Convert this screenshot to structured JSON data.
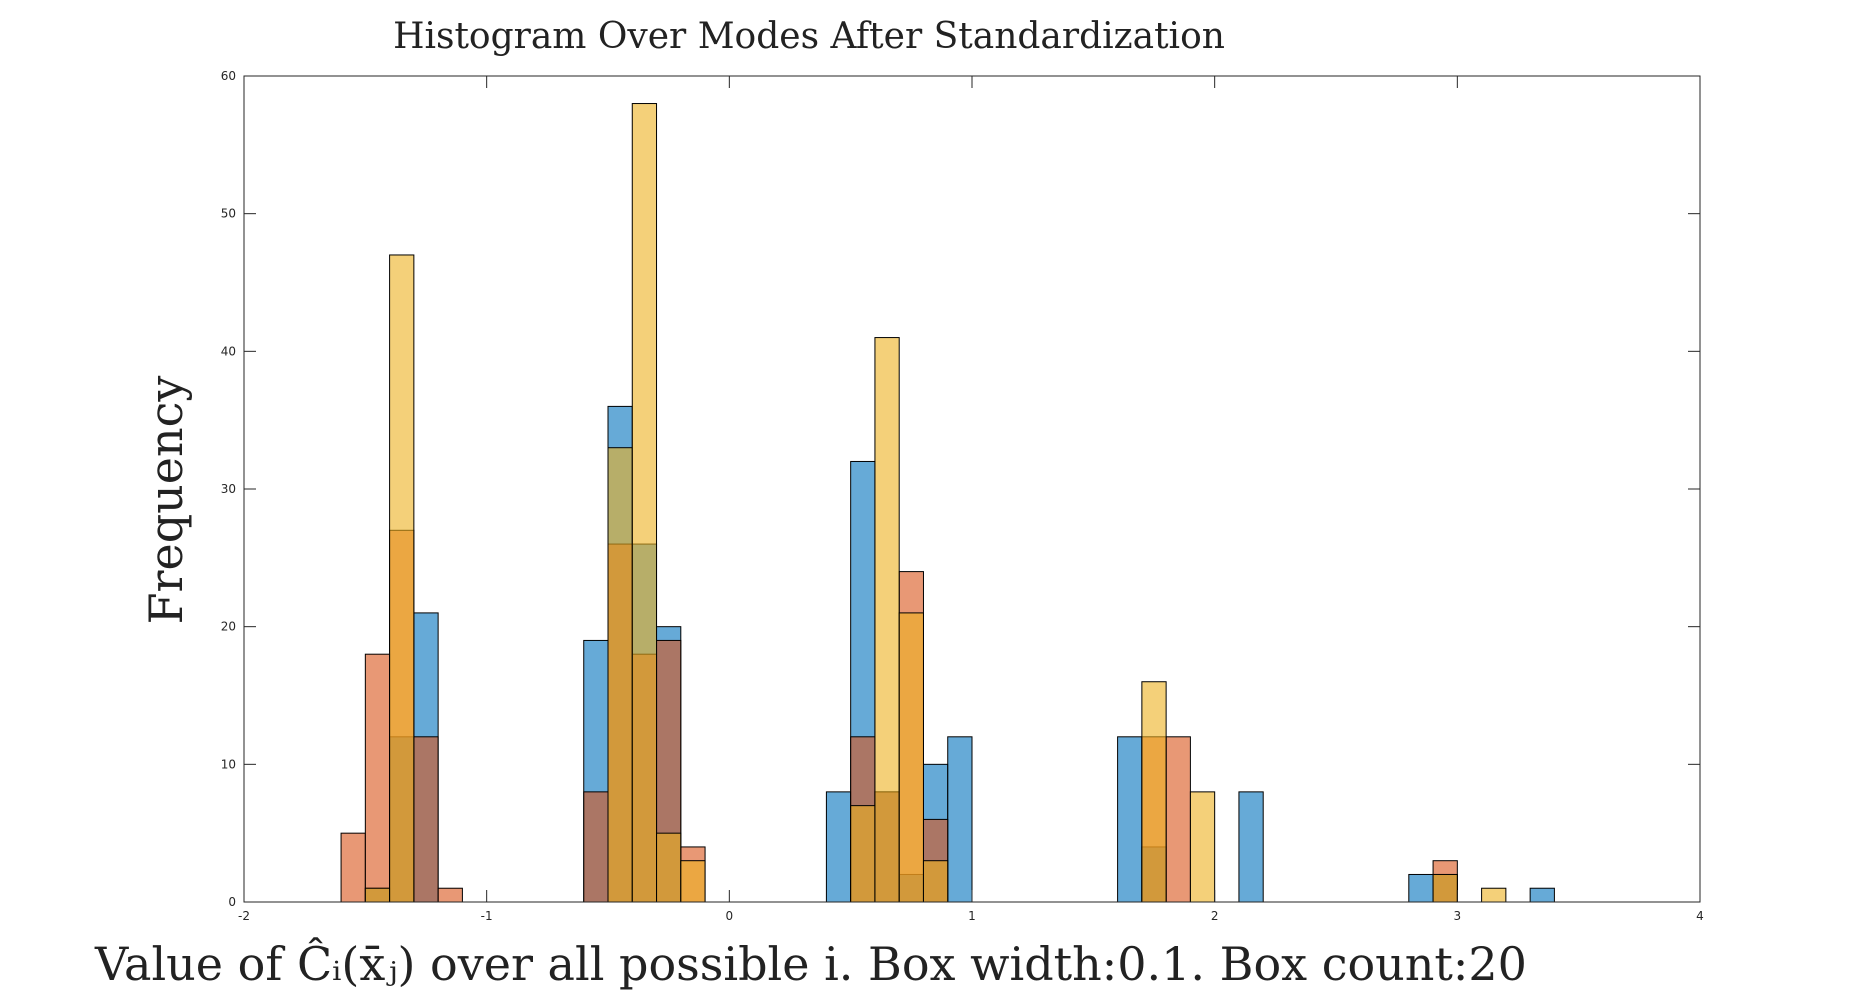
{
  "chart_data": {
    "type": "bar",
    "title": "Histogram Over Modes After Standardization",
    "xlabel": "Value of Ĉᵢ(x̄ⱼ) over all possible i. Box width:0.1. Box count:20",
    "ylabel": "Frequency",
    "xlim": [
      -2,
      4
    ],
    "ylim": [
      0,
      60
    ],
    "xticks": [
      "-2",
      "-1",
      "0",
      "1",
      "2",
      "3",
      "4"
    ],
    "yticks": [
      "0",
      "10",
      "20",
      "30",
      "40",
      "50",
      "60"
    ],
    "grid": false,
    "bin_width": 0.1,
    "series": [
      {
        "color": "#0072BD",
        "bins": [
          {
            "x": -1.5,
            "count": 1
          },
          {
            "x": -1.4,
            "count": 12
          },
          {
            "x": -1.3,
            "count": 21
          },
          {
            "x": -0.6,
            "count": 19
          },
          {
            "x": -0.5,
            "count": 36
          },
          {
            "x": -0.4,
            "count": 26
          },
          {
            "x": -0.3,
            "count": 20
          },
          {
            "x": 0.4,
            "count": 8
          },
          {
            "x": 0.5,
            "count": 32
          },
          {
            "x": 0.6,
            "count": 8
          },
          {
            "x": 0.7,
            "count": 2
          },
          {
            "x": 0.8,
            "count": 10
          },
          {
            "x": 0.9,
            "count": 12
          },
          {
            "x": 1.6,
            "count": 12
          },
          {
            "x": 1.7,
            "count": 4
          },
          {
            "x": 2.1,
            "count": 8
          },
          {
            "x": 2.8,
            "count": 2
          },
          {
            "x": 2.9,
            "count": 2
          },
          {
            "x": 3.3,
            "count": 1
          }
        ]
      },
      {
        "color": "#D95319",
        "bins": [
          {
            "x": -1.6,
            "count": 5
          },
          {
            "x": -1.5,
            "count": 18
          },
          {
            "x": -1.4,
            "count": 27
          },
          {
            "x": -1.3,
            "count": 12
          },
          {
            "x": -1.2,
            "count": 1
          },
          {
            "x": -0.6,
            "count": 8
          },
          {
            "x": -0.5,
            "count": 26
          },
          {
            "x": -0.4,
            "count": 18
          },
          {
            "x": -0.3,
            "count": 19
          },
          {
            "x": -0.2,
            "count": 4
          },
          {
            "x": 0.5,
            "count": 12
          },
          {
            "x": 0.6,
            "count": 8
          },
          {
            "x": 0.7,
            "count": 24
          },
          {
            "x": 0.8,
            "count": 6
          },
          {
            "x": 1.7,
            "count": 12
          },
          {
            "x": 1.8,
            "count": 12
          },
          {
            "x": 2.9,
            "count": 3
          }
        ]
      },
      {
        "color": "#EDB120",
        "bins": [
          {
            "x": -1.5,
            "count": 1
          },
          {
            "x": -1.4,
            "count": 47
          },
          {
            "x": -0.5,
            "count": 33
          },
          {
            "x": -0.4,
            "count": 58
          },
          {
            "x": -0.3,
            "count": 5
          },
          {
            "x": -0.2,
            "count": 3
          },
          {
            "x": 0.5,
            "count": 7
          },
          {
            "x": 0.6,
            "count": 41
          },
          {
            "x": 0.7,
            "count": 21
          },
          {
            "x": 0.8,
            "count": 3
          },
          {
            "x": 1.7,
            "count": 16
          },
          {
            "x": 1.9,
            "count": 8
          },
          {
            "x": 2.9,
            "count": 2
          },
          {
            "x": 3.1,
            "count": 1
          }
        ]
      }
    ]
  }
}
